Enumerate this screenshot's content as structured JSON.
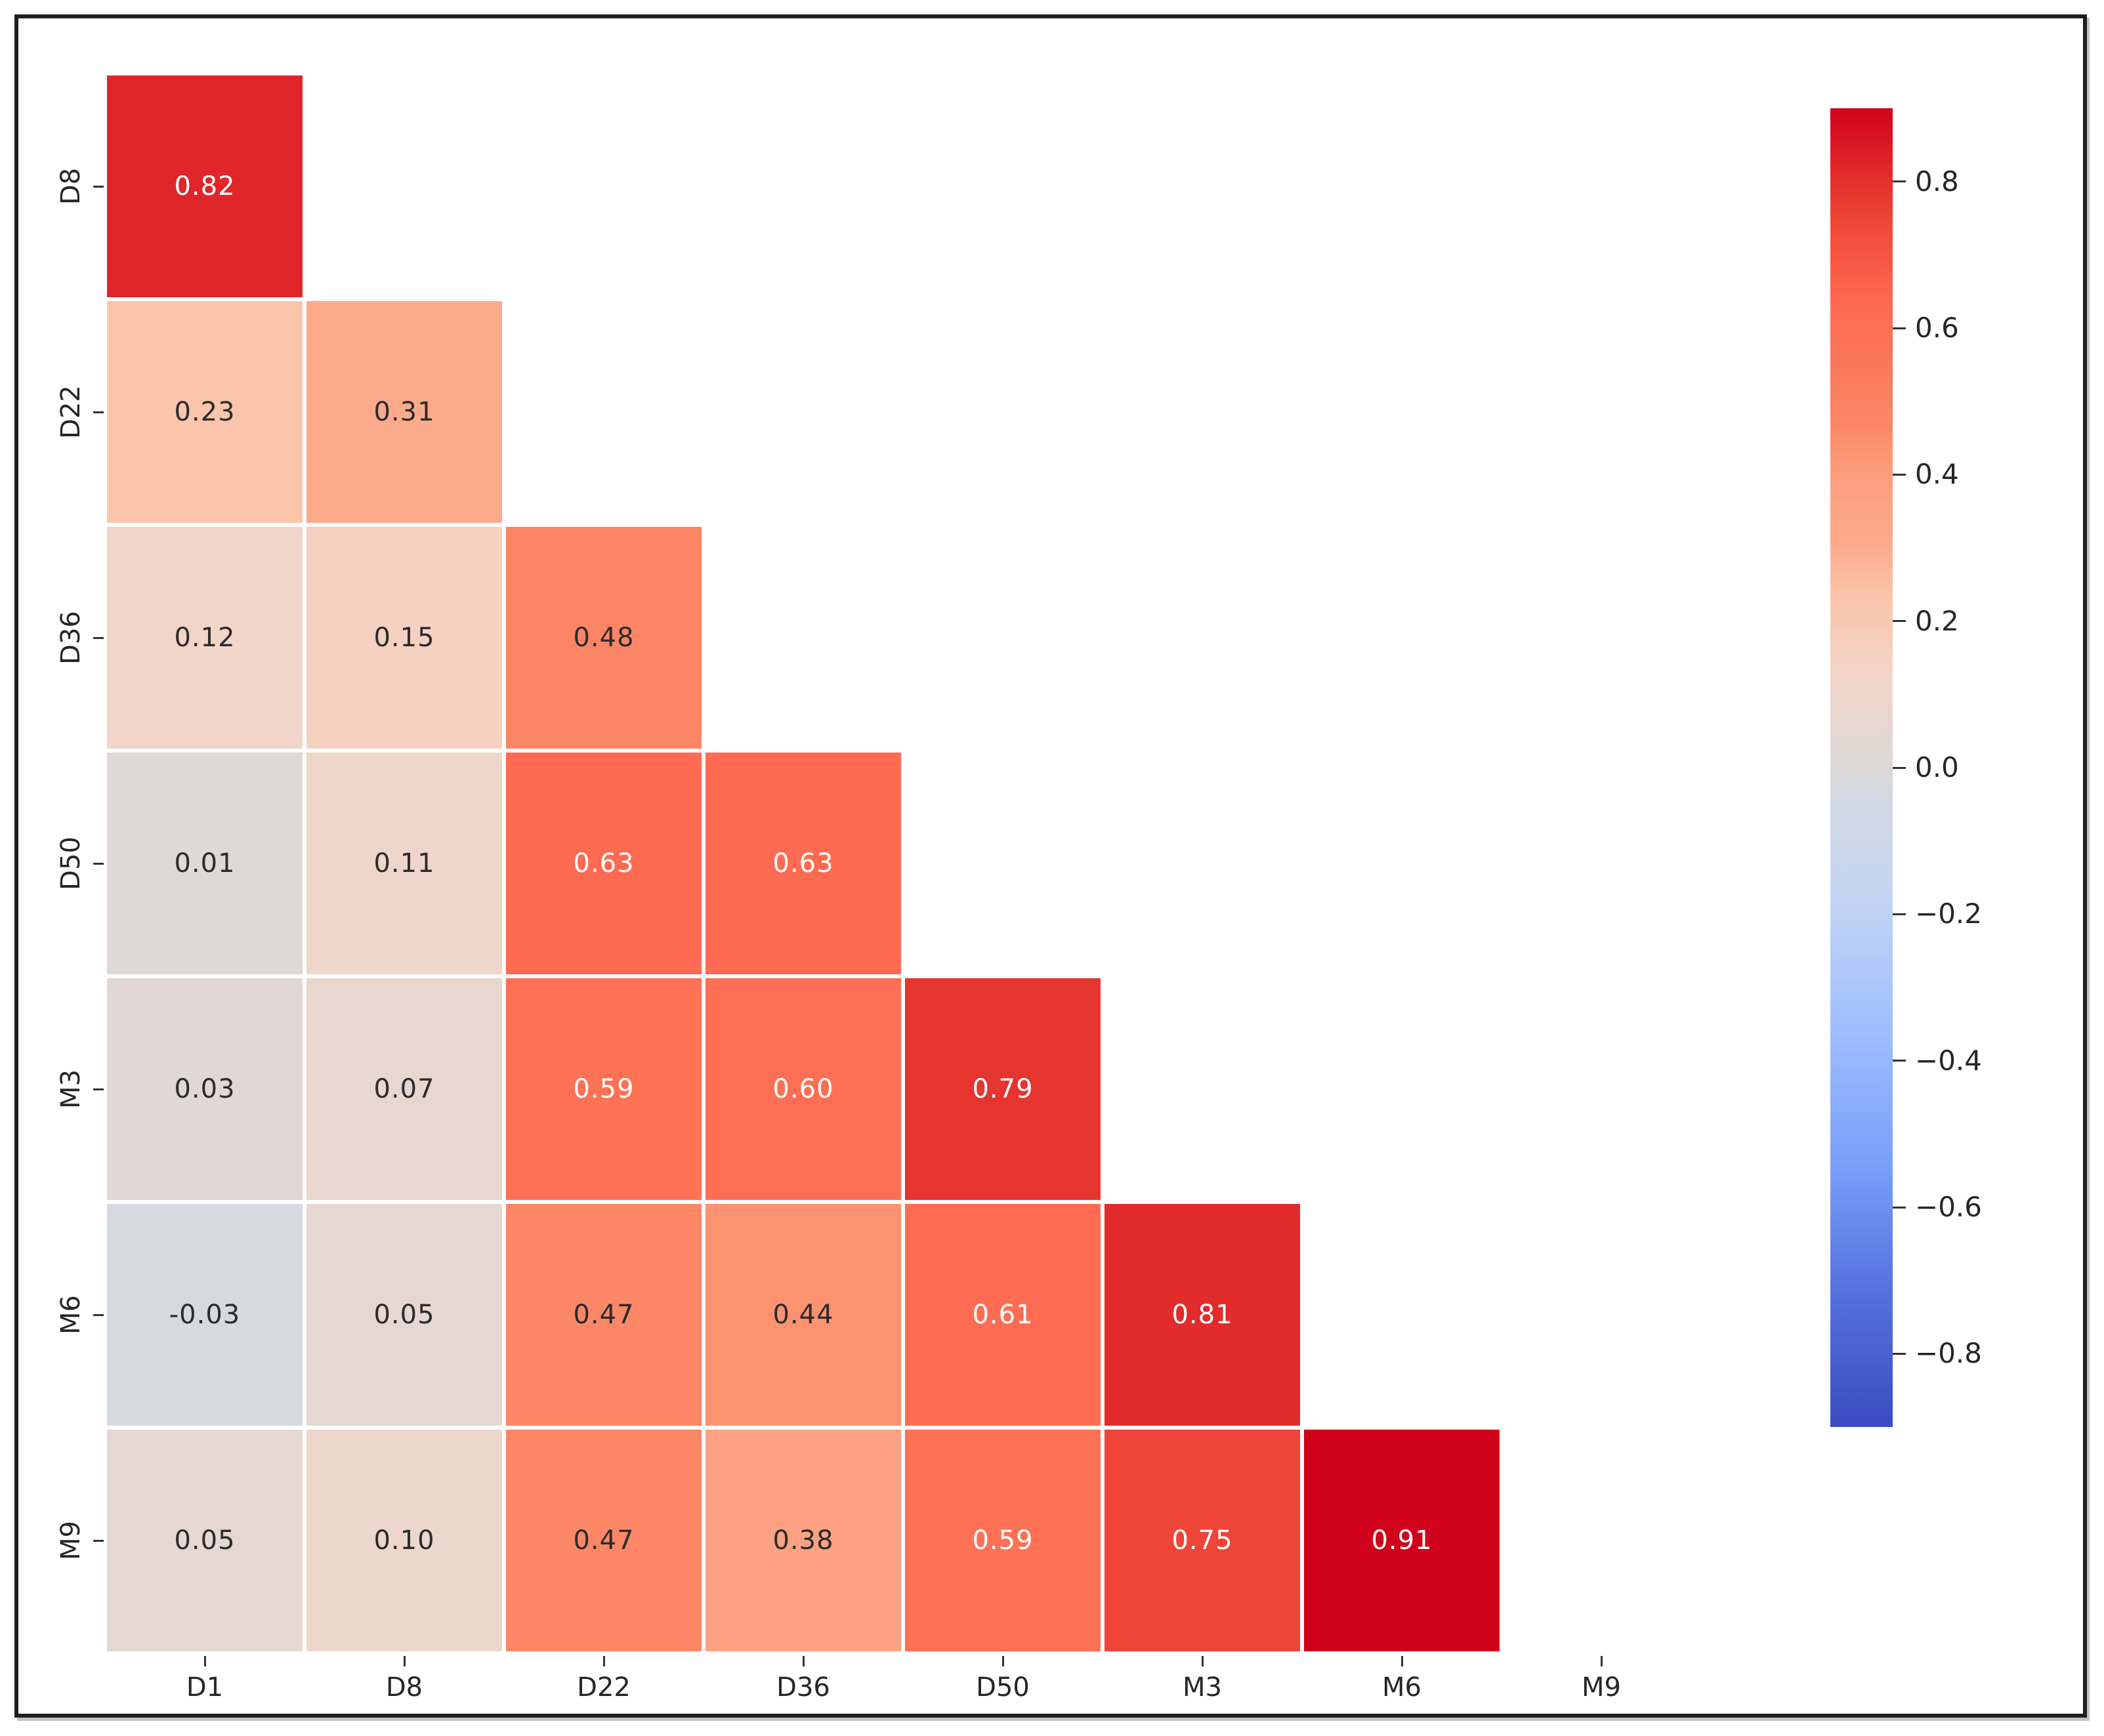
{
  "chart_data": {
    "type": "heatmap",
    "description": "Lower-triangular correlation matrix heatmap with annotated coefficients and a diverging red-blue colorbar",
    "x_labels": [
      "D1",
      "D8",
      "D22",
      "D36",
      "D50",
      "M3",
      "M6",
      "M9"
    ],
    "y_labels": [
      "D8",
      "D22",
      "D36",
      "D50",
      "M3",
      "M6",
      "M9"
    ],
    "rows": [
      {
        "label": "D8",
        "values": [
          0.82
        ],
        "texts": [
          "0.82"
        ]
      },
      {
        "label": "D22",
        "values": [
          0.23,
          0.31
        ],
        "texts": [
          "0.23",
          "0.31"
        ]
      },
      {
        "label": "D36",
        "values": [
          0.12,
          0.15,
          0.48
        ],
        "texts": [
          "0.12",
          "0.15",
          "0.48"
        ]
      },
      {
        "label": "D50",
        "values": [
          0.01,
          0.11,
          0.63,
          0.63
        ],
        "texts": [
          "0.01",
          "0.11",
          "0.63",
          "0.63"
        ]
      },
      {
        "label": "M3",
        "values": [
          0.03,
          0.07,
          0.59,
          0.6,
          0.79
        ],
        "texts": [
          "0.03",
          "0.07",
          "0.59",
          "0.60",
          "0.79"
        ]
      },
      {
        "label": "M6",
        "values": [
          -0.03,
          0.05,
          0.47,
          0.44,
          0.61,
          0.81
        ],
        "texts": [
          "-0.03",
          "0.05",
          "0.47",
          "0.44",
          "0.61",
          "0.81"
        ]
      },
      {
        "label": "M9",
        "values": [
          0.05,
          0.1,
          0.47,
          0.38,
          0.59,
          0.75,
          0.91
        ],
        "texts": [
          "0.05",
          "0.10",
          "0.47",
          "0.38",
          "0.59",
          "0.75",
          "0.91"
        ]
      }
    ],
    "value_domain": [
      -0.9,
      0.9
    ],
    "colorbar": {
      "tick_values": [
        0.8,
        0.6,
        0.4,
        0.2,
        0.0,
        -0.2,
        -0.4,
        -0.6,
        -0.8
      ],
      "tick_labels": [
        "0.8",
        "0.6",
        "0.4",
        "0.2",
        "0.0",
        "−0.2",
        "−0.4",
        "−0.6",
        "−0.8"
      ]
    },
    "colormap_stops": [
      {
        "t": 0.0,
        "color": "#3b4cc0"
      },
      {
        "t": 0.1,
        "color": "#5470de"
      },
      {
        "t": 0.2,
        "color": "#7b9ff9"
      },
      {
        "t": 0.3,
        "color": "#9ebeff"
      },
      {
        "t": 0.4,
        "color": "#c3d5f4"
      },
      {
        "t": 0.48,
        "color": "#d3d9e2"
      },
      {
        "t": 0.5,
        "color": "#dcd9d7"
      },
      {
        "t": 0.57,
        "color": "#f2d5c8"
      },
      {
        "t": 0.63,
        "color": "#fbc4aa"
      },
      {
        "t": 0.67,
        "color": "#fcab8c"
      },
      {
        "t": 0.71,
        "color": "#fca183"
      },
      {
        "t": 0.74,
        "color": "#fc9572"
      },
      {
        "t": 0.76,
        "color": "#fc8767"
      },
      {
        "t": 0.82,
        "color": "#fc7356"
      },
      {
        "t": 0.85,
        "color": "#ff6a52"
      },
      {
        "t": 0.91,
        "color": "#f04a3a"
      },
      {
        "t": 0.95,
        "color": "#e22b2b"
      },
      {
        "t": 1.0,
        "color": "#d0021b"
      }
    ],
    "colors": {
      "background": "#ffffff",
      "frame_border": "#1f1f1f",
      "cell_gap": "#ffffff",
      "tick_mark": "#333333",
      "axis_text": "#262626",
      "annotation_dark": "#2b2b2b",
      "annotation_light": "#ffffff"
    },
    "legend_position": "right",
    "grid": false
  }
}
